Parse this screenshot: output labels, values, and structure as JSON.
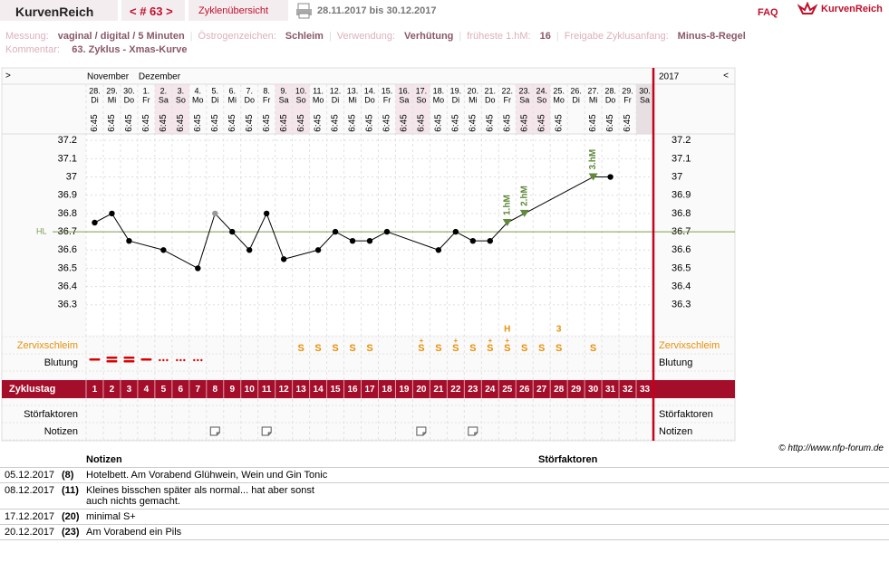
{
  "header": {
    "brand": "KurvenReich",
    "cycle_nav": "< # 63 >",
    "overview": "Zyklenübersicht",
    "date_range": "28.11.2017 bis 30.12.2017",
    "faq": "FAQ",
    "logo": "KurvenReich"
  },
  "info": [
    {
      "label": "Messung:",
      "value": "vaginal / digital / 5 Minuten"
    },
    {
      "label": "Östrogenzeichen:",
      "value": "Schleim"
    },
    {
      "label": "Verwendung:",
      "value": "Verhütung"
    },
    {
      "label": "früheste 1.hM:",
      "value": "16"
    },
    {
      "label": "Freigabe Zyklusanfang:",
      "value": "Minus-8-Regel"
    }
  ],
  "comment": {
    "label": "Kommentar:",
    "value": "63. Zyklus - Xmas-Kurve"
  },
  "chart_data": {
    "type": "line",
    "nav_left": ">",
    "nav_right": "<",
    "year": "2017",
    "months": [
      {
        "label": "November",
        "day": 1
      },
      {
        "label": "Dezember",
        "day": 4
      }
    ],
    "dates": [
      "28.",
      "29.",
      "30.",
      "1.",
      "2.",
      "3.",
      "4.",
      "5.",
      "6.",
      "7.",
      "8.",
      "9.",
      "10.",
      "11.",
      "12.",
      "13.",
      "14.",
      "15.",
      "16.",
      "17.",
      "18.",
      "19.",
      "20.",
      "21.",
      "22.",
      "23.",
      "24.",
      "25.",
      "26.",
      "27.",
      "28.",
      "29.",
      "30."
    ],
    "weekdays": [
      "Di",
      "Mi",
      "Do",
      "Fr",
      "Sa",
      "So",
      "Mo",
      "Di",
      "Mi",
      "Do",
      "Fr",
      "Sa",
      "So",
      "Mo",
      "Di",
      "Mi",
      "Do",
      "Fr",
      "Sa",
      "So",
      "Mo",
      "Di",
      "Mi",
      "Do",
      "Fr",
      "Sa",
      "So",
      "Mo",
      "Di",
      "Mi",
      "Do",
      "Fr",
      "Sa"
    ],
    "times": [
      "6:45",
      "6:45",
      "6:45",
      "6:45",
      "6:45",
      "6:45",
      "6:45",
      "6:45",
      "6:45",
      "6:45",
      "6:45",
      "6:45",
      "6:45",
      "6:45",
      "6:45",
      "6:45",
      "6:45",
      "6:45",
      "6:45",
      "6:45",
      "6:45",
      "6:45",
      "6:45",
      "6:45",
      "6:45",
      "6:45",
      "6:45",
      "6:45",
      null,
      "6:45",
      "6:45",
      "6:45",
      null
    ],
    "cycle_days": [
      1,
      2,
      3,
      4,
      5,
      6,
      7,
      8,
      9,
      10,
      11,
      12,
      13,
      14,
      15,
      16,
      17,
      18,
      19,
      20,
      21,
      22,
      23,
      24,
      25,
      26,
      27,
      28,
      29,
      30,
      31,
      32,
      33
    ],
    "values": [
      36.75,
      36.8,
      36.65,
      null,
      36.6,
      null,
      36.5,
      36.8,
      36.7,
      36.6,
      36.8,
      36.55,
      null,
      36.6,
      36.7,
      36.65,
      36.65,
      36.7,
      null,
      null,
      36.6,
      36.7,
      36.65,
      36.65,
      36.75,
      36.8,
      null,
      null,
      null,
      37.0,
      37.0,
      null,
      null
    ],
    "color": "#000000",
    "excluded_days": [
      8
    ],
    "excluded_color": "#999999",
    "ylim": [
      36.2,
      37.3
    ],
    "yticks": [
      36.3,
      36.4,
      36.5,
      36.6,
      36.7,
      36.8,
      36.9,
      37,
      37.1,
      37.2
    ],
    "coverline": {
      "label": "HL",
      "value": 36.7,
      "color": "#7f9a50"
    },
    "peaks": [
      {
        "day": 25,
        "label": "1.hM"
      },
      {
        "day": 26,
        "label": "2.hM"
      },
      {
        "day": 30,
        "label": "3.hM"
      }
    ],
    "peak_color": "#5f8a3a",
    "rows": {
      "cervix": "Zervixschleim",
      "bleeding": "Blutung",
      "cycle_day": "Zyklustag",
      "disturbances": "Störfaktoren",
      "notes": "Notizen"
    },
    "cervix": [
      {
        "day": 13,
        "mark": "S"
      },
      {
        "day": 14,
        "mark": "S"
      },
      {
        "day": 15,
        "mark": "S"
      },
      {
        "day": 16,
        "mark": "S"
      },
      {
        "day": 17,
        "mark": "S"
      },
      {
        "day": 20,
        "mark": "S",
        "sup": "+"
      },
      {
        "day": 21,
        "mark": "S"
      },
      {
        "day": 22,
        "mark": "S",
        "sup": "+"
      },
      {
        "day": 23,
        "mark": "S"
      },
      {
        "day": 24,
        "mark": "S",
        "sup": "+"
      },
      {
        "day": 25,
        "mark": "S",
        "sup": "+"
      },
      {
        "day": 26,
        "mark": "S"
      },
      {
        "day": 27,
        "mark": "S"
      },
      {
        "day": 28,
        "mark": "S"
      },
      {
        "day": 30,
        "mark": "S"
      }
    ],
    "cervix_markers": [
      {
        "day": 25,
        "label": "H"
      },
      {
        "day": 28,
        "label": "3"
      }
    ],
    "bleeding": [
      2,
      3,
      3,
      2,
      1,
      1,
      1
    ],
    "note_days": [
      8,
      11,
      20,
      23
    ]
  },
  "copyright": "© http://www.nfp-forum.de",
  "table": {
    "headers": [
      "Notizen",
      "Störfaktoren"
    ],
    "rows": [
      [
        "05.12.2017",
        "(8)",
        "Hotelbett. Am Vorabend Glühwein, Wein und Gin Tonic"
      ],
      [
        "08.12.2017",
        "(11)",
        "Kleines bisschen später als normal... hat aber sonst\nauch nichts gemacht."
      ],
      [
        "17.12.2017",
        "(20)",
        "minimal S+"
      ],
      [
        "20.12.2017",
        "(23)",
        "Am Vorabend ein Pils"
      ]
    ]
  }
}
